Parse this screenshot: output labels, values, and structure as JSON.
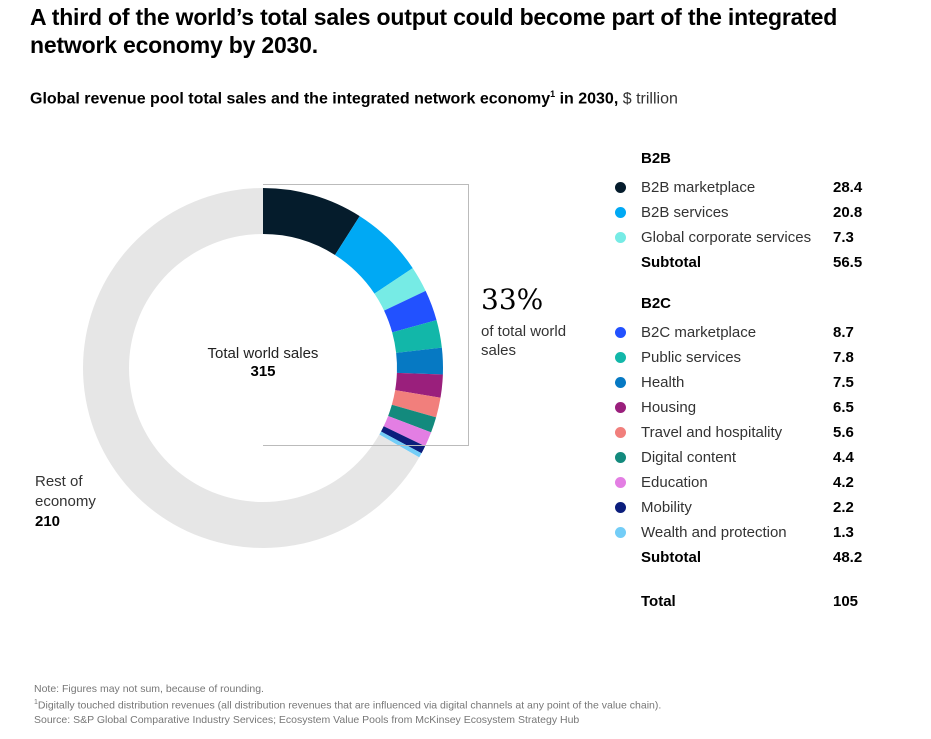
{
  "title": "A third of the world’s total sales output could become part of the integrated network economy by 2030.",
  "subtitle": {
    "main": "Global revenue pool total sales and the integrated network economy",
    "footnote_mark": "1",
    "suffix": " in 2030,",
    "unit": "$ trillion"
  },
  "center": {
    "label": "Total world sales",
    "value": "315"
  },
  "rest": {
    "line1": "Rest of",
    "line2": "economy",
    "value": "210"
  },
  "callout": {
    "pct": "33%",
    "text": "of total world sales"
  },
  "legend": {
    "b2b": {
      "title": "B2B",
      "items": [
        {
          "name": "B2B marketplace",
          "value": "28.4",
          "color": "#051c2c"
        },
        {
          "name": "B2B services",
          "value": "20.8",
          "color": "#00a9f4"
        },
        {
          "name": "Global corporate services",
          "value": "7.3",
          "color": "#76ebe5"
        }
      ],
      "subtotal_label": "Subtotal",
      "subtotal": "56.5"
    },
    "b2c": {
      "title": "B2C",
      "items": [
        {
          "name": "B2C marketplace",
          "value": "8.7",
          "color": "#2251ff"
        },
        {
          "name": "Public services",
          "value": "7.8",
          "color": "#12b7a9"
        },
        {
          "name": "Health",
          "value": "7.5",
          "color": "#0679c3"
        },
        {
          "name": "Housing",
          "value": "6.5",
          "color": "#9a1f7c"
        },
        {
          "name": "Travel and hospitality",
          "value": "5.6",
          "color": "#f17f7c"
        },
        {
          "name": "Digital content",
          "value": "4.4",
          "color": "#138a7d"
        },
        {
          "name": "Education",
          "value": "4.2",
          "color": "#e37ee3"
        },
        {
          "name": "Mobility",
          "value": "2.2",
          "color": "#0b1e7c"
        },
        {
          "name": "Wealth and protection",
          "value": "1.3",
          "color": "#73cdf7"
        }
      ],
      "subtotal_label": "Subtotal",
      "subtotal": "48.2"
    },
    "total_label": "Total",
    "total": "105"
  },
  "notes": {
    "note": "Note: Figures may not sum, because of rounding.",
    "footnote_mark": "1",
    "footnote": "Digitally touched distribution revenues (all distribution revenues that are influenced via digital channels at any point of the value chain).",
    "source": "Source: S&P Global Comparative Industry Services; Ecosystem Value Pools from McKinsey Ecosystem Strategy Hub"
  },
  "chart_data": {
    "type": "pie",
    "variant": "donut",
    "title": "Global revenue pool total sales and the integrated network economy in 2030",
    "unit": "$ trillion",
    "total": 315,
    "start": "top",
    "direction": "clockwise",
    "slices": [
      {
        "label": "B2B marketplace",
        "value": 28.4,
        "color": "#051c2c"
      },
      {
        "label": "B2B services",
        "value": 20.8,
        "color": "#00a9f4"
      },
      {
        "label": "Global corporate services",
        "value": 7.3,
        "color": "#76ebe5"
      },
      {
        "label": "B2C marketplace",
        "value": 8.7,
        "color": "#2251ff"
      },
      {
        "label": "Public services",
        "value": 7.8,
        "color": "#12b7a9"
      },
      {
        "label": "Health",
        "value": 7.5,
        "color": "#0679c3"
      },
      {
        "label": "Housing",
        "value": 6.5,
        "color": "#9a1f7c"
      },
      {
        "label": "Travel and hospitality",
        "value": 5.6,
        "color": "#f17f7c"
      },
      {
        "label": "Digital content",
        "value": 4.4,
        "color": "#138a7d"
      },
      {
        "label": "Education",
        "value": 4.2,
        "color": "#e37ee3"
      },
      {
        "label": "Mobility",
        "value": 2.2,
        "color": "#0b1e7c"
      },
      {
        "label": "Wealth and protection",
        "value": 1.3,
        "color": "#73cdf7"
      },
      {
        "label": "Rest of economy",
        "value": 210,
        "color": "#e6e6e6"
      }
    ],
    "annotations": [
      "Total world sales 315",
      "33% of total world sales",
      "Rest of economy 210"
    ]
  }
}
